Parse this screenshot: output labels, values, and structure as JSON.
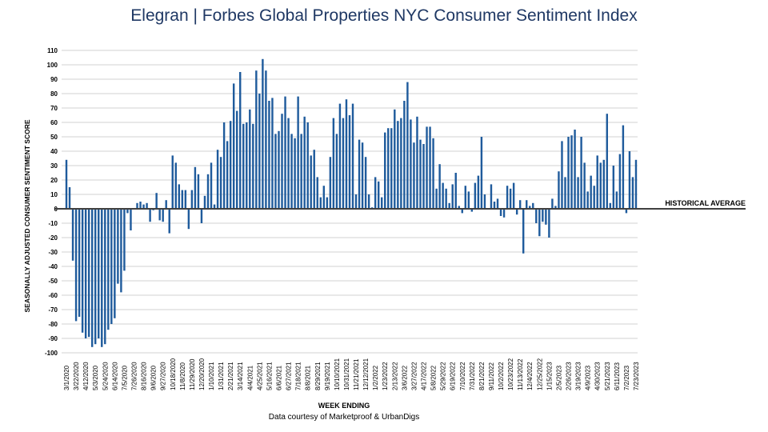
{
  "header": {
    "title_brand": "Elegran | Forbes Global Properties",
    "title_rest": "NYC Consumer Sentiment Index"
  },
  "footer": {
    "credit": "Data courtesy of Marketproof & UrbanDigs"
  },
  "chart_data": {
    "type": "bar",
    "title": "Elegran | Forbes Global Properties NYC Consumer Sentiment Index",
    "xlabel": "WEEK ENDING",
    "ylabel": "SEASONALLY ADJUSTED CONSUMER SENTIMENT SCORE",
    "ylim": [
      -100,
      110
    ],
    "ytick_step": 10,
    "grid": true,
    "bar_color": "#1f5b9c",
    "reference_line": {
      "label": "HISTORICAL AVERAGE",
      "value": 0,
      "color": "#404040"
    },
    "xtick_labels": [
      "3/1/2020",
      "3/22/2020",
      "4/12/2020",
      "5/3/2020",
      "5/24/2020",
      "6/14/2020",
      "7/5/2020",
      "7/26/2020",
      "8/16/2020",
      "9/6/2020",
      "9/27/2020",
      "10/18/2020",
      "11/8/2020",
      "11/29/2020",
      "12/20/2020",
      "1/10/2021",
      "1/31/2021",
      "2/21/2021",
      "3/14/2021",
      "4/4/2021",
      "4/25/2021",
      "5/16/2021",
      "6/6/2021",
      "6/27/2021",
      "7/18/2021",
      "8/8/2021",
      "8/29/2021",
      "9/19/2021",
      "10/10/2021",
      "10/31/2021",
      "11/21/2021",
      "12/12/2021",
      "1/2/2022",
      "1/23/2022",
      "2/13/2022",
      "3/6/2022",
      "3/27/2022",
      "4/17/2022",
      "5/8/2022",
      "5/29/2022",
      "6/19/2022",
      "7/10/2022",
      "7/31/2022",
      "8/21/2022",
      "9/11/2022",
      "10/2/2022",
      "10/23/2022",
      "11/13/2022",
      "12/4/2022",
      "12/25/2022",
      "1/15/2023",
      "2/5/2023",
      "2/26/2023",
      "3/19/2023",
      "4/9/2023",
      "4/30/2023",
      "5/21/2023",
      "6/11/2023",
      "7/2/2023",
      "7/23/2023"
    ],
    "values": [
      34,
      15,
      -36,
      -78,
      -75,
      -86,
      -90,
      -89,
      -96,
      -94,
      -90,
      -96,
      -94,
      -84,
      -80,
      -76,
      -52,
      -58,
      -43,
      -3,
      -15,
      0,
      4,
      5,
      3,
      4,
      -9,
      -1,
      11,
      -8,
      -9,
      6,
      -17,
      37,
      32,
      17,
      13,
      13,
      -14,
      13,
      29,
      24,
      -10,
      9,
      24,
      32,
      3,
      41,
      36,
      60,
      47,
      61,
      87,
      68,
      95,
      59,
      60,
      69,
      59,
      96,
      80,
      104,
      96,
      75,
      77,
      52,
      54,
      66,
      78,
      63,
      52,
      49,
      78,
      52,
      64,
      60,
      37,
      41,
      22,
      8,
      16,
      8,
      36,
      63,
      52,
      73,
      63,
      76,
      65,
      73,
      10,
      48,
      46,
      36,
      10,
      1,
      22,
      19,
      8,
      53,
      56,
      56,
      69,
      61,
      63,
      75,
      88,
      62,
      46,
      64,
      48,
      45,
      57,
      57,
      49,
      14,
      31,
      18,
      14,
      4,
      17,
      25,
      2,
      -3,
      16,
      12,
      -2,
      18,
      23,
      50,
      10,
      0,
      17,
      5,
      7,
      -5,
      -6,
      16,
      14,
      18,
      -4,
      6,
      -31,
      6,
      2,
      4,
      -10,
      -19,
      -9,
      -11,
      -20,
      7,
      2,
      26,
      47,
      22,
      50,
      51,
      55,
      22,
      50,
      32,
      12,
      23,
      16,
      37,
      32,
      34,
      66,
      4,
      30,
      12,
      38,
      58,
      -3,
      40,
      22,
      34
    ]
  }
}
